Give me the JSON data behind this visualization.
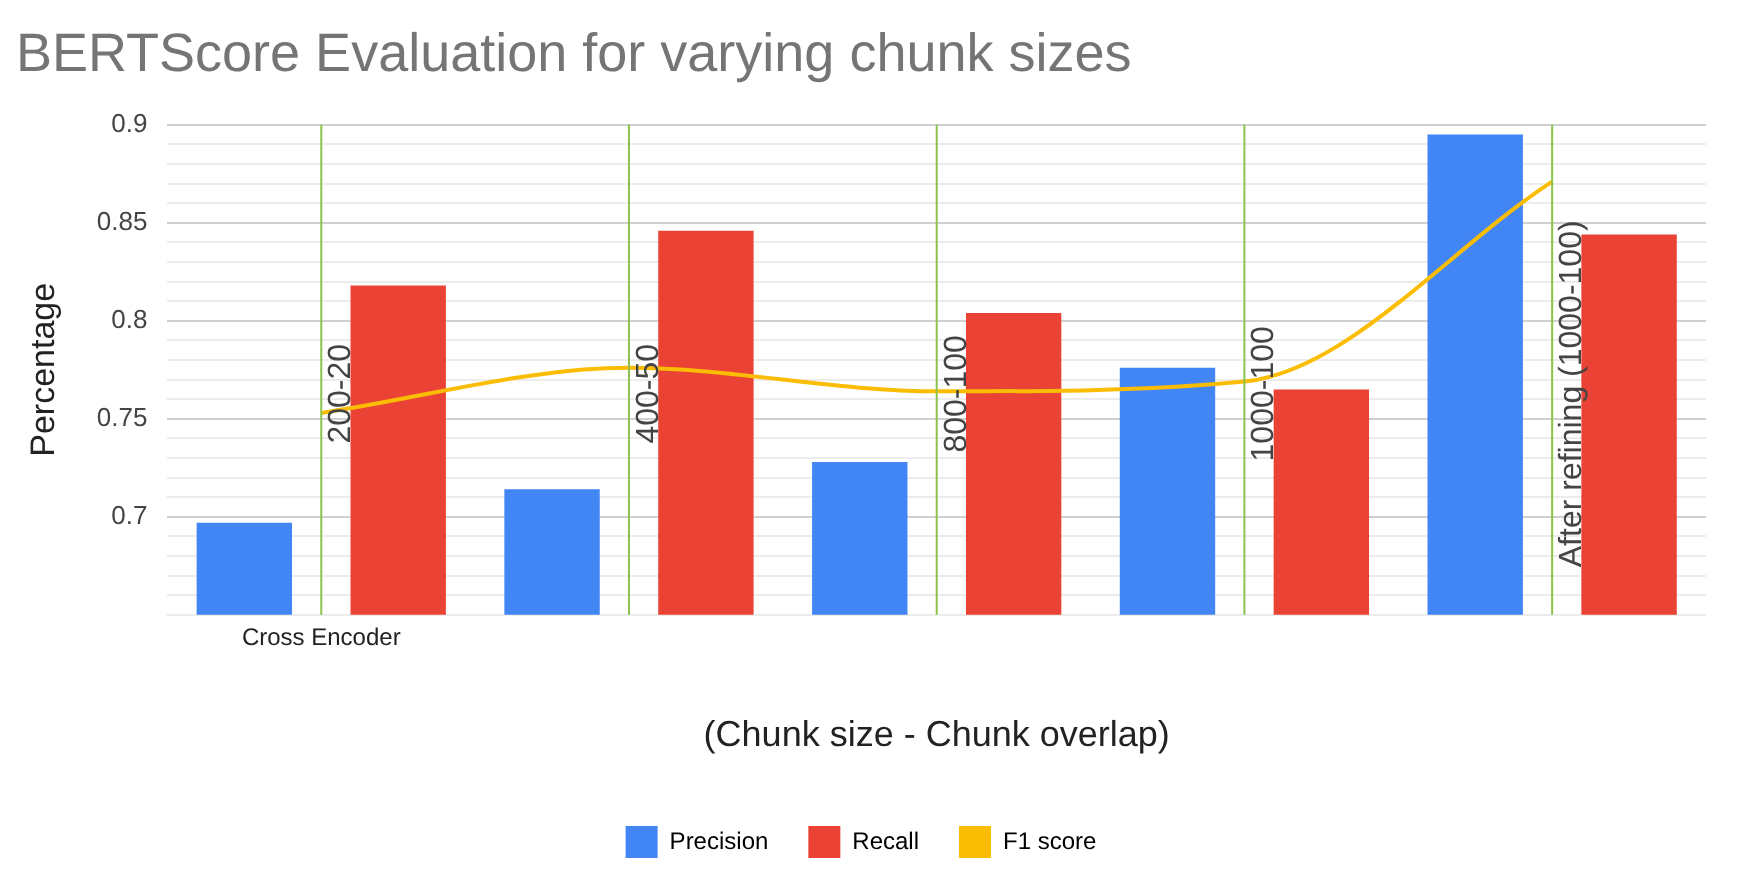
{
  "chart_data": {
    "type": "bar",
    "title": "BERTScore Evaluation for varying chunk sizes",
    "xlabel": "(Chunk size - Chunk overlap)",
    "ylabel": "Percentage",
    "categories": [
      "200-20",
      "400-50",
      "800-100",
      "1000-100",
      "After refining (1000-100)"
    ],
    "annotations": [
      "Cross Encoder"
    ],
    "series": [
      {
        "name": "Precision",
        "color": "#4285f4",
        "values": [
          0.697,
          0.714,
          0.728,
          0.776,
          0.895
        ]
      },
      {
        "name": "Recall",
        "color": "#ea4335",
        "values": [
          0.818,
          0.846,
          0.804,
          0.765,
          0.844
        ]
      },
      {
        "name": "F1 score",
        "type": "line",
        "color": "#fbbc04",
        "values": [
          0.753,
          0.776,
          0.764,
          0.769,
          0.871
        ]
      }
    ],
    "ylim": [
      0.65,
      0.9
    ],
    "yticks": [
      {
        "value": 0.65,
        "label": null
      },
      {
        "value": 0.66,
        "label": null
      },
      {
        "value": 0.67,
        "label": null
      },
      {
        "value": 0.68,
        "label": null
      },
      {
        "value": 0.69,
        "label": null
      },
      0.7,
      {
        "value": 0.71,
        "label": null
      },
      {
        "value": 0.72,
        "label": null
      },
      {
        "value": 0.73,
        "label": null
      },
      {
        "value": 0.74,
        "label": null
      },
      0.75,
      {
        "value": 0.76,
        "label": null
      },
      {
        "value": 0.77,
        "label": null
      },
      {
        "value": 0.78,
        "label": null
      },
      {
        "value": 0.79,
        "label": null
      },
      0.8,
      {
        "value": 0.81,
        "label": null
      },
      {
        "value": 0.82,
        "label": null
      },
      {
        "value": 0.83,
        "label": null
      },
      {
        "value": 0.84,
        "label": null
      },
      0.85,
      {
        "value": 0.86,
        "label": null
      },
      {
        "value": 0.87,
        "label": null
      },
      {
        "value": 0.88,
        "label": null
      },
      {
        "value": 0.89,
        "label": null
      },
      0.9
    ],
    "ref_lines": [
      {
        "axis": "x",
        "value": "200-20",
        "color": "#8bc34a"
      },
      {
        "axis": "x",
        "value": "400-50",
        "color": "#8bc34a"
      },
      {
        "axis": "x",
        "value": "800-100",
        "color": "#8bc34a"
      },
      {
        "axis": "x",
        "value": "1000-100",
        "color": "#8bc34a"
      },
      {
        "axis": "x",
        "value": "After refining (1000-100)",
        "color": "#8bc34a"
      }
    ],
    "grid": "y",
    "legend": "bottom"
  }
}
